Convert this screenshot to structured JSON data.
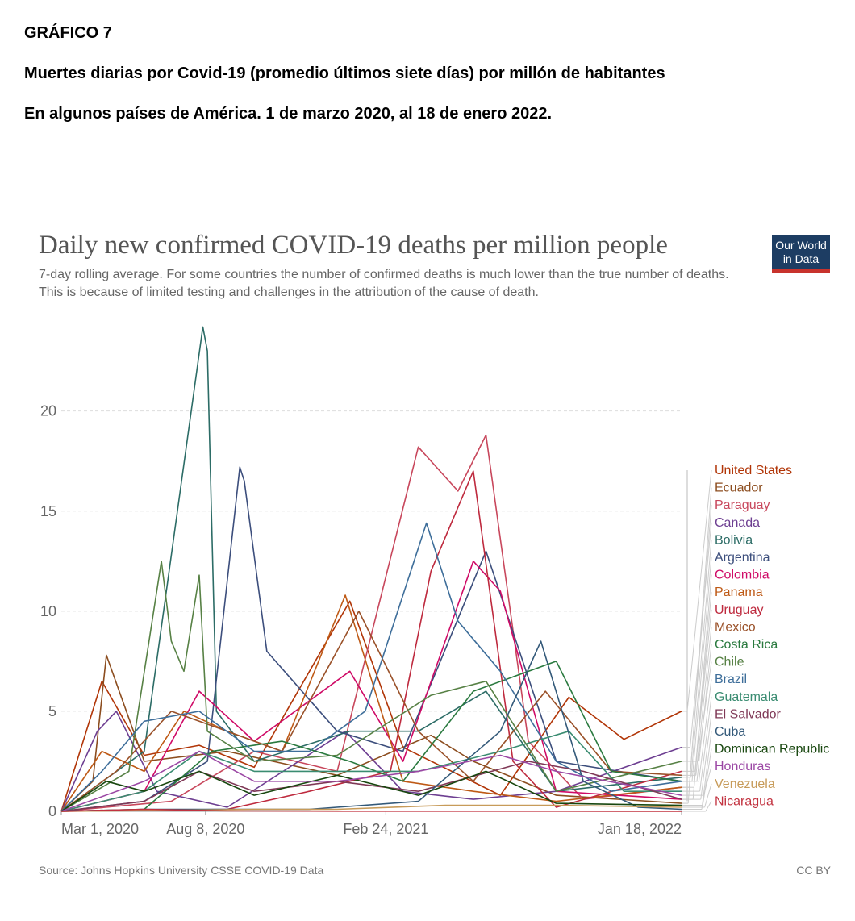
{
  "header": {
    "figure_label": "GRÁFICO 7",
    "line1": "Muertes diarias por Covid-19 (promedio últimos siete días) por millón de habitantes",
    "line2": "En algunos países de América. 1 de marzo 2020, al 18 de enero 2022."
  },
  "logo": {
    "line1": "Our World",
    "line2": "in Data"
  },
  "footer": {
    "source": "Source: Johns Hopkins University CSSE COVID-19 Data",
    "license": "CC BY"
  },
  "chart_data": {
    "type": "line",
    "title": "Daily new confirmed COVID-19 deaths per million people",
    "subtitle": "7-day rolling average. For some countries the number of confirmed deaths is much lower than the true number of deaths. This is because of limited testing and challenges in the attribution of the cause of death.",
    "xlabel": "",
    "ylabel": "",
    "x_ticks": [
      "Mar 1, 2020",
      "Aug 8, 2020",
      "Feb 24, 2021",
      "Jan 18, 2022"
    ],
    "y_ticks": [
      0,
      5,
      10,
      15,
      20
    ],
    "ylim": [
      0,
      24.5
    ],
    "grid": true,
    "legend_position": "right",
    "x_axis_dates": [
      "2020-03-01",
      "2022-01-18"
    ],
    "series": [
      {
        "name": "United States",
        "color": "#b13507",
        "x": [
          "2020-03-01",
          "2020-04-15",
          "2020-06-01",
          "2020-08-01",
          "2020-10-01",
          "2021-01-15",
          "2021-03-15",
          "2021-07-01",
          "2021-09-15",
          "2021-11-15",
          "2022-01-18"
        ],
        "values": [
          0,
          6.5,
          2.8,
          3.3,
          2.2,
          10.5,
          3.2,
          0.8,
          5.7,
          3.6,
          5.0
        ]
      },
      {
        "name": "Ecuador",
        "color": "#8c4d1f",
        "x": [
          "2020-03-01",
          "2020-04-05",
          "2020-04-20",
          "2020-06-01",
          "2020-09-01",
          "2021-01-01",
          "2021-04-15",
          "2021-06-01",
          "2021-09-01",
          "2022-01-18"
        ],
        "values": [
          0,
          1.5,
          7.8,
          2.5,
          3.0,
          1.8,
          3.8,
          2.5,
          0.8,
          0.4
        ]
      },
      {
        "name": "Paraguay",
        "color": "#c8475c",
        "x": [
          "2020-03-01",
          "2020-07-01",
          "2020-10-01",
          "2021-01-01",
          "2021-04-01",
          "2021-05-15",
          "2021-06-15",
          "2021-08-01",
          "2021-10-01",
          "2022-01-18"
        ],
        "values": [
          0,
          0.5,
          3.0,
          2.0,
          18.2,
          16.0,
          18.8,
          3.5,
          0.6,
          1.2
        ]
      },
      {
        "name": "Canada",
        "color": "#6d3e91",
        "x": [
          "2020-03-01",
          "2020-04-10",
          "2020-05-01",
          "2020-06-15",
          "2020-09-01",
          "2021-01-10",
          "2021-03-15",
          "2021-06-01",
          "2021-09-01",
          "2022-01-18"
        ],
        "values": [
          0,
          4.0,
          5.0,
          1.0,
          0.2,
          4.0,
          1.0,
          0.6,
          1.0,
          3.2
        ]
      },
      {
        "name": "Bolivia",
        "color": "#2c6c66",
        "x": [
          "2020-03-01",
          "2020-06-01",
          "2020-08-05",
          "2020-08-10",
          "2020-08-20",
          "2020-10-01",
          "2021-01-15",
          "2021-04-01",
          "2021-06-15",
          "2021-09-01",
          "2022-01-18"
        ],
        "values": [
          0,
          3.0,
          24.2,
          23.0,
          5.0,
          2.5,
          4.0,
          4.0,
          6.0,
          1.0,
          1.7
        ]
      },
      {
        "name": "Argentina",
        "color": "#3c4e7c",
        "x": [
          "2020-03-01",
          "2020-06-01",
          "2020-08-10",
          "2020-09-15",
          "2020-09-20",
          "2020-10-15",
          "2021-01-01",
          "2021-03-15",
          "2021-06-15",
          "2021-09-01",
          "2022-01-18"
        ],
        "values": [
          0,
          0.5,
          2.5,
          17.2,
          16.5,
          8.0,
          4.0,
          3.0,
          13.0,
          2.5,
          1.5
        ]
      },
      {
        "name": "Colombia",
        "color": "#cf0a66",
        "x": [
          "2020-03-01",
          "2020-06-01",
          "2020-08-01",
          "2020-10-01",
          "2021-01-15",
          "2021-03-15",
          "2021-06-01",
          "2021-07-01",
          "2021-09-01",
          "2022-01-18"
        ],
        "values": [
          0,
          1.0,
          6.0,
          3.5,
          7.0,
          2.5,
          12.5,
          11.0,
          1.0,
          0.6
        ]
      },
      {
        "name": "Panama",
        "color": "#be5915",
        "x": [
          "2020-03-01",
          "2020-04-15",
          "2020-06-01",
          "2020-07-15",
          "2020-09-01",
          "2020-11-01",
          "2021-01-10",
          "2021-03-15",
          "2021-06-01",
          "2021-09-01",
          "2022-01-18"
        ],
        "values": [
          0,
          3.0,
          2.0,
          5.0,
          4.0,
          3.0,
          10.8,
          1.5,
          1.0,
          0.5,
          1.2
        ]
      },
      {
        "name": "Uruguay",
        "color": "#be2a3e",
        "x": [
          "2020-03-01",
          "2020-09-01",
          "2020-12-01",
          "2021-03-01",
          "2021-04-15",
          "2021-06-01",
          "2021-07-15",
          "2021-09-01",
          "2022-01-18"
        ],
        "values": [
          0,
          0.1,
          1.0,
          2.0,
          12.0,
          17.0,
          2.5,
          0.2,
          2.0
        ]
      },
      {
        "name": "Mexico",
        "color": "#9a5129",
        "x": [
          "2020-03-01",
          "2020-05-01",
          "2020-07-01",
          "2020-09-01",
          "2020-11-01",
          "2021-01-25",
          "2021-04-01",
          "2021-06-01",
          "2021-08-20",
          "2021-11-01",
          "2022-01-18"
        ],
        "values": [
          0,
          2.0,
          5.0,
          4.0,
          3.0,
          10.0,
          4.0,
          1.5,
          6.0,
          2.0,
          1.8
        ]
      },
      {
        "name": "Costa Rica",
        "color": "#2a7a3f",
        "x": [
          "2020-03-01",
          "2020-06-01",
          "2020-08-15",
          "2020-11-01",
          "2021-01-15",
          "2021-03-15",
          "2021-06-01",
          "2021-09-01",
          "2021-11-01",
          "2022-01-18"
        ],
        "values": [
          0,
          0.1,
          3.0,
          3.5,
          2.5,
          1.5,
          6.0,
          7.5,
          2.0,
          1.5
        ]
      },
      {
        "name": "Chile",
        "color": "#578145",
        "x": [
          "2020-03-01",
          "2020-05-15",
          "2020-06-20",
          "2020-07-01",
          "2020-07-15",
          "2020-08-01",
          "2020-08-10",
          "2020-10-01",
          "2021-01-01",
          "2021-04-15",
          "2021-06-15",
          "2021-09-01",
          "2022-01-18"
        ],
        "values": [
          0,
          2.0,
          12.5,
          8.5,
          7.0,
          11.8,
          4.0,
          2.5,
          2.8,
          5.8,
          6.5,
          1.0,
          2.5
        ]
      },
      {
        "name": "Brazil",
        "color": "#3e6e9a",
        "x": [
          "2020-03-01",
          "2020-04-15",
          "2020-06-01",
          "2020-08-01",
          "2020-10-01",
          "2020-12-01",
          "2021-02-01",
          "2021-04-10",
          "2021-05-15",
          "2021-07-01",
          "2021-09-01",
          "2021-11-01",
          "2022-01-18"
        ],
        "values": [
          0,
          2.0,
          4.5,
          5.0,
          3.0,
          3.0,
          5.0,
          14.4,
          9.5,
          7.0,
          2.5,
          1.0,
          1.5
        ]
      },
      {
        "name": "Guatemala",
        "color": "#3a8c71",
        "x": [
          "2020-03-01",
          "2020-06-01",
          "2020-08-01",
          "2020-10-01",
          "2021-01-01",
          "2021-04-01",
          "2021-07-01",
          "2021-09-15",
          "2021-11-15",
          "2022-01-18"
        ],
        "values": [
          0,
          1.0,
          3.0,
          2.0,
          2.0,
          2.0,
          3.0,
          4.0,
          1.0,
          1.0
        ]
      },
      {
        "name": "El Salvador",
        "color": "#7f3856",
        "x": [
          "2020-03-01",
          "2020-06-01",
          "2020-08-01",
          "2020-10-01",
          "2021-01-01",
          "2021-04-01",
          "2021-08-01",
          "2021-10-01",
          "2022-01-18"
        ],
        "values": [
          0,
          0.5,
          2.0,
          1.0,
          1.5,
          1.0,
          2.5,
          2.0,
          0.6
        ]
      },
      {
        "name": "Cuba",
        "color": "#335979",
        "x": [
          "2020-03-01",
          "2020-06-01",
          "2020-12-01",
          "2021-04-01",
          "2021-07-01",
          "2021-08-15",
          "2021-10-01",
          "2021-12-01",
          "2022-01-18"
        ],
        "values": [
          0,
          0.1,
          0.1,
          0.5,
          4.0,
          8.5,
          1.5,
          0.2,
          0.1
        ]
      },
      {
        "name": "Dominican Republic",
        "color": "#18470f",
        "x": [
          "2020-03-01",
          "2020-04-20",
          "2020-06-01",
          "2020-08-01",
          "2020-10-01",
          "2021-01-01",
          "2021-04-01",
          "2021-06-15",
          "2021-09-01",
          "2022-01-18"
        ],
        "values": [
          0,
          1.5,
          1.0,
          2.0,
          0.8,
          1.8,
          0.8,
          2.0,
          0.4,
          0.3
        ]
      },
      {
        "name": "Honduras",
        "color": "#9b47a4",
        "x": [
          "2020-03-01",
          "2020-06-01",
          "2020-08-01",
          "2020-10-01",
          "2021-01-01",
          "2021-04-01",
          "2021-07-01",
          "2021-09-01",
          "2022-01-18"
        ],
        "values": [
          0,
          1.5,
          3.0,
          1.5,
          1.5,
          2.0,
          2.8,
          2.0,
          0.8
        ]
      },
      {
        "name": "Venezuela",
        "color": "#c79b59",
        "x": [
          "2020-03-01",
          "2020-07-01",
          "2020-10-01",
          "2021-01-01",
          "2021-05-01",
          "2021-09-01",
          "2022-01-18"
        ],
        "values": [
          0,
          0.05,
          0.1,
          0.1,
          0.3,
          0.3,
          0.2
        ]
      },
      {
        "name": "Nicaragua",
        "color": "#c2323f",
        "x": [
          "2020-03-01",
          "2020-06-01",
          "2020-09-01",
          "2021-01-01",
          "2021-09-01",
          "2022-01-18"
        ],
        "values": [
          0,
          0.1,
          0.02,
          0.01,
          0.01,
          0.0
        ]
      }
    ]
  }
}
